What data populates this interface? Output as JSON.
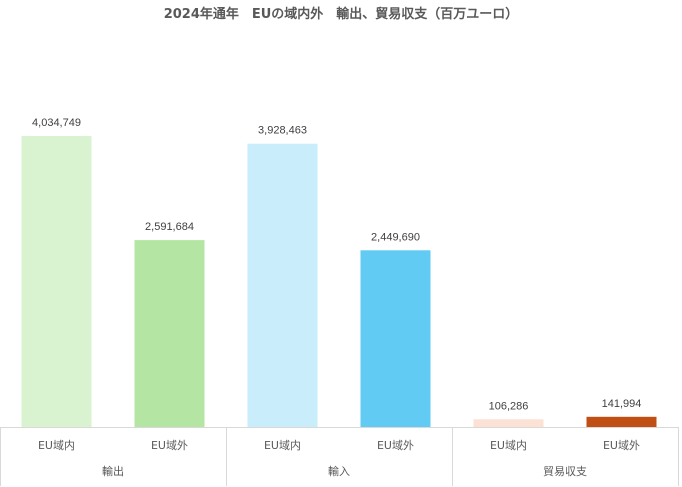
{
  "chart_data": {
    "type": "bar",
    "title": "2024年通年　EUの域内外　輸出、貿易収支（百万ユーロ）",
    "groups": [
      "輸出",
      "輸入",
      "貿易収支"
    ],
    "categories": [
      "EU域内",
      "EU域外",
      "EU域内",
      "EU域外",
      "EU域内",
      "EU域外"
    ],
    "values": [
      4034749,
      2591684,
      3928463,
      2449690,
      106286,
      141994
    ],
    "value_labels": [
      "4,034,749",
      "2,591,684",
      "3,928,463",
      "2,449,690",
      "106,286",
      "141,994"
    ],
    "colors": [
      "#d9f2d0",
      "#b4e5a2",
      "#caedfb",
      "#61cbf3",
      "#fbe2d5",
      "#c04f15"
    ],
    "ylim": [
      0,
      4500000
    ],
    "grid": false,
    "legend": "none",
    "xlabel": "",
    "ylabel": ""
  }
}
